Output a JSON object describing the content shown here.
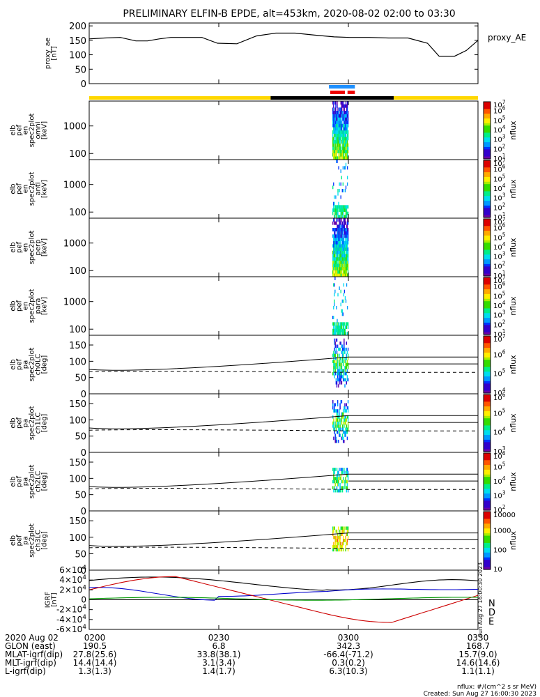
{
  "title": "PRELIMINARY ELFIN-B EPDE, alt=453km, 2020-08-02 02:00 to 03:30",
  "chart_data": {
    "type": "heatmap",
    "time_range": [
      "02:00",
      "03:30"
    ],
    "panels": [
      {
        "id": "ae",
        "type": "line",
        "ylabel": [
          "proxy_ae",
          "[nT]"
        ],
        "yticks": [
          0,
          50,
          100,
          150,
          200
        ],
        "ylim": [
          0,
          210
        ],
        "legend": "proxy_AE",
        "x": [
          0,
          0.04,
          0.08,
          0.12,
          0.15,
          0.18,
          0.21,
          0.25,
          0.29,
          0.33,
          0.38,
          0.43,
          0.48,
          0.53,
          0.58,
          0.63,
          0.67,
          0.72,
          0.77,
          0.82,
          0.87,
          0.9,
          0.94,
          0.97,
          1.0
        ],
        "y": [
          155,
          158,
          160,
          148,
          148,
          155,
          160,
          160,
          160,
          140,
          138,
          165,
          175,
          175,
          168,
          162,
          160,
          160,
          158,
          158,
          140,
          95,
          95,
          115,
          150
        ]
      },
      {
        "id": "omni",
        "type": "heatmap",
        "ylabel": [
          "elb",
          "pef",
          "en",
          "spec2plot",
          "omni",
          "[keV]"
        ],
        "ylog": true,
        "yticks": [
          100,
          1000
        ],
        "zlabel": "nflux",
        "zticks": [
          "10^1",
          "10^2",
          "10^3",
          "10^4",
          "10^5",
          "10^6",
          "10^7"
        ],
        "active_window": [
          "02:56",
          "03:00"
        ]
      },
      {
        "id": "anti",
        "type": "heatmap",
        "ylabel": [
          "elb",
          "pef",
          "en",
          "spec2plot",
          "anti",
          "[keV]"
        ],
        "ylog": true,
        "yticks": [
          100,
          1000
        ],
        "zlabel": "nflux",
        "zticks": [
          "10^1",
          "10^2",
          "10^3",
          "10^4",
          "10^5",
          "10^6",
          "10^7"
        ],
        "active_window": [
          "02:56",
          "03:00"
        ]
      },
      {
        "id": "perp",
        "type": "heatmap",
        "ylabel": [
          "elb",
          "pef",
          "en",
          "spec2plot",
          "perp",
          "[keV]"
        ],
        "ylog": true,
        "yticks": [
          100,
          1000
        ],
        "zlabel": "nflux",
        "zticks": [
          "10^1",
          "10^2",
          "10^3",
          "10^4",
          "10^5",
          "10^6",
          "10^7"
        ],
        "active_window": [
          "02:56",
          "03:00"
        ]
      },
      {
        "id": "para",
        "type": "heatmap",
        "ylabel": [
          "elb",
          "pef",
          "en",
          "spec2plot",
          "para",
          "[keV]"
        ],
        "ylog": true,
        "yticks": [
          100,
          1000
        ],
        "zlabel": "nflux",
        "zticks": [
          "10^1",
          "10^2",
          "10^3",
          "10^4",
          "10^5",
          "10^6",
          "10^7"
        ],
        "active_window": [
          "02:56",
          "03:00"
        ]
      },
      {
        "id": "ch0",
        "type": "heatmap",
        "ylabel": [
          "elb",
          "pef",
          "pa",
          "spec2plot",
          "ch0LC",
          "[deg]"
        ],
        "yticks": [
          0,
          50,
          100,
          150
        ],
        "ylim": [
          0,
          180
        ],
        "zlabel": "nflux",
        "zticks": [
          "10^4",
          "10^5",
          "10^6",
          "10^7"
        ],
        "active_window": [
          "02:56",
          "03:00"
        ]
      },
      {
        "id": "ch1",
        "type": "heatmap",
        "ylabel": [
          "elb",
          "pef",
          "pa",
          "spec2plot",
          "ch1LC",
          "[deg]"
        ],
        "yticks": [
          0,
          50,
          100,
          150
        ],
        "ylim": [
          0,
          180
        ],
        "zlabel": "nflux",
        "zticks": [
          "10^3",
          "10^4",
          "10^5",
          "10^6"
        ],
        "active_window": [
          "02:56",
          "03:00"
        ]
      },
      {
        "id": "ch2",
        "type": "heatmap",
        "ylabel": [
          "elb",
          "pef",
          "pa",
          "spec2plot",
          "ch2LC",
          "[deg]"
        ],
        "yticks": [
          0,
          50,
          100,
          150
        ],
        "ylim": [
          0,
          180
        ],
        "zlabel": "nflux",
        "zticks": [
          "10^2",
          "10^3",
          "10^4",
          "10^5",
          "10^6"
        ],
        "active_window": [
          "02:56",
          "03:00"
        ]
      },
      {
        "id": "ch3",
        "type": "heatmap",
        "ylabel": [
          "elb",
          "pef",
          "pa",
          "spec2plot",
          "ch3LC",
          "[deg]"
        ],
        "yticks": [
          0,
          50,
          100,
          150
        ],
        "ylim": [
          0,
          180
        ],
        "zlabel": "nflux",
        "zticks": [
          "10",
          "100",
          "1000",
          "10000"
        ],
        "active_window": [
          "02:56",
          "03:00"
        ]
      },
      {
        "id": "igrf",
        "type": "line",
        "ylabel": [
          "IGRF",
          "[nT]"
        ],
        "yticks": [
          "6×10^4",
          "4×10^4",
          "2×10^4",
          "0",
          "-2×10^4",
          "-4×10^4",
          "-6×10^4"
        ],
        "ylim": [
          -60000,
          60000
        ],
        "legend": [
          "N",
          "D",
          "E"
        ],
        "side_text": "Sun Aug 27 16:00:30 2023"
      }
    ],
    "xticks": [
      "0200",
      "0230",
      "0300",
      "0330"
    ],
    "ephemeris": [
      {
        "label": "2020 Aug 02",
        "values": [
          "0200",
          "0230",
          "0300",
          "0330"
        ]
      },
      {
        "label": "GLON (east)",
        "values": [
          "190.5",
          "6.8",
          "342.3",
          "168.7"
        ]
      },
      {
        "label": "MLAT-igrf(dip)",
        "values": [
          "27.8(25.6)",
          "33.8(38.1)",
          "-66.4(-71.2)",
          "15.7(9.0)"
        ]
      },
      {
        "label": "MLT-igrf(dip)",
        "values": [
          "14.4(14.4)",
          "3.1(3.4)",
          "0.3(0.2)",
          "14.6(14.6)"
        ]
      },
      {
        "label": "L-igrf(dip)",
        "values": [
          "1.3(1.3)",
          "1.4(1.7)",
          "6.3(10.3)",
          "1.1(1.1)"
        ]
      }
    ],
    "footnote": "nflux: #/(cm^2 s sr MeV)",
    "created": "Created: Sun Aug 27 16:00:30 2023"
  }
}
